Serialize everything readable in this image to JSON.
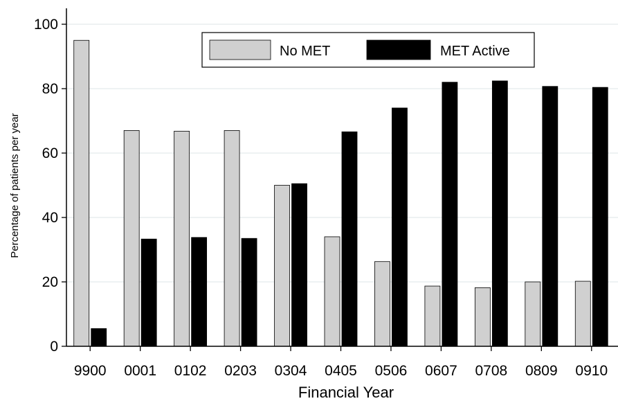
{
  "chart_data": {
    "type": "bar",
    "title": "",
    "xlabel": "Financial Year",
    "ylabel": "Percentage of patients per year",
    "categories": [
      "9900",
      "0001",
      "0102",
      "0203",
      "0304",
      "0405",
      "0506",
      "0607",
      "0708",
      "0809",
      "0910"
    ],
    "series": [
      {
        "name": "No MET",
        "color": "#d0d0d0",
        "values": [
          95,
          67,
          66.8,
          67,
          50,
          34,
          26.3,
          18.7,
          18.2,
          20,
          20.2
        ]
      },
      {
        "name": "MET Active",
        "color": "#000000",
        "values": [
          5.5,
          33.3,
          33.8,
          33.5,
          50.5,
          66.6,
          74,
          82,
          82.4,
          80.7,
          80.4
        ]
      }
    ],
    "ylim": [
      0,
      100
    ],
    "yticks": [
      0,
      20,
      40,
      60,
      80,
      100
    ],
    "grid": true,
    "legend_position": "top"
  }
}
